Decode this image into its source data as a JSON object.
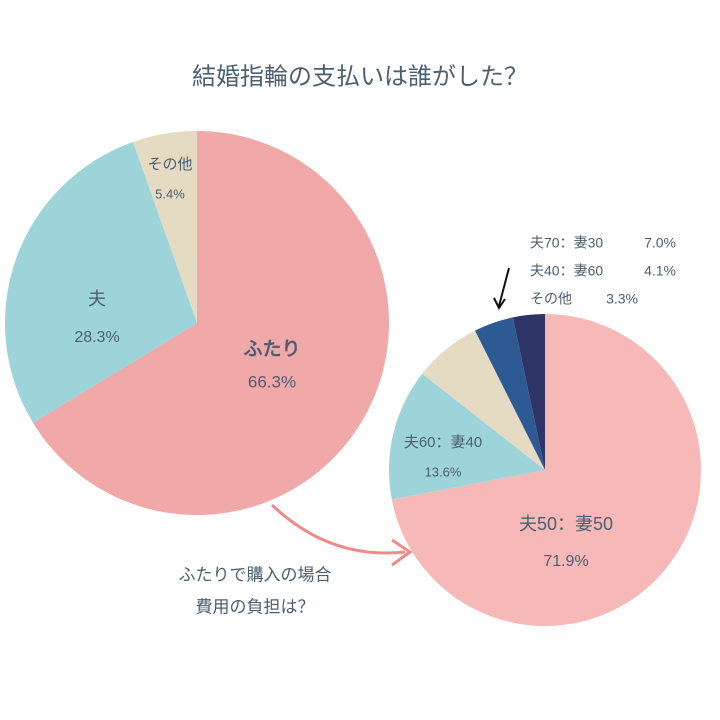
{
  "chart_data": [
    {
      "type": "pie",
      "title": "結婚指輪の支払いは誰がした？",
      "categories": [
        "ふたり",
        "夫",
        "その他"
      ],
      "values": [
        66.3,
        28.3,
        5.4
      ],
      "value_labels": [
        "66.3%",
        "28.3%",
        "5.4%"
      ],
      "colors": [
        "#f0a8a8",
        "#9dd4d9",
        "#e5dac2"
      ]
    },
    {
      "type": "pie",
      "annotation": [
        "ふたりで購入の場合",
        "費用の負担は？"
      ],
      "categories": [
        "夫50：妻50",
        "夫60：妻40",
        "夫70：妻30",
        "夫40：妻60",
        "その他"
      ],
      "values": [
        71.9,
        13.6,
        7.0,
        4.1,
        3.3
      ],
      "value_labels": [
        "71.9%",
        "13.6%",
        "7.0%",
        "4.1%",
        "3.3%"
      ],
      "colors": [
        "#f7b8b8",
        "#9dd4d9",
        "#e5dac2",
        "#2e5a94",
        "#2e3566"
      ]
    }
  ]
}
